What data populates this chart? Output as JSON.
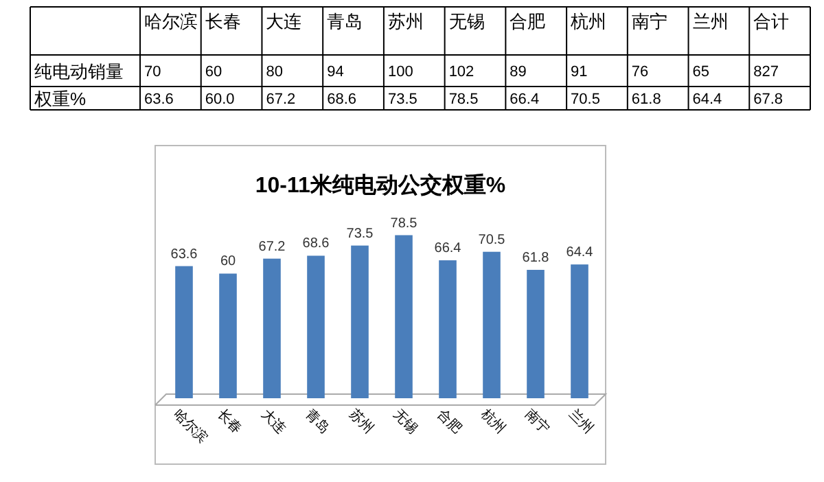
{
  "chart_data": [
    {
      "type": "other",
      "data_labels": true,
      "categories": [
        "哈尔滨",
        "长春",
        "大连",
        "青岛",
        "苏州",
        "无锡",
        "合肥",
        "杭州",
        "南宁",
        "兰州",
        "合计"
      ],
      "series": [
        {
          "name": "纯电动销量",
          "values": [
            70,
            60,
            80,
            94,
            100,
            102,
            89,
            91,
            76,
            65,
            827
          ]
        },
        {
          "name": "权重%",
          "values": [
            63.6,
            60.0,
            67.2,
            68.6,
            73.5,
            78.5,
            66.4,
            70.5,
            61.8,
            64.4,
            67.8
          ],
          "value_labels": [
            "63.6",
            "60.0",
            "67.2",
            "68.6",
            "73.5",
            "78.5",
            "66.4",
            "70.5",
            "61.8",
            "64.4",
            "67.8"
          ]
        }
      ]
    },
    {
      "type": "bar",
      "title": "10-11米纯电动公交权重%",
      "categories": [
        "哈尔滨",
        "长春",
        "大连",
        "青岛",
        "苏州",
        "无锡",
        "合肥",
        "杭州",
        "南宁",
        "兰州"
      ],
      "values": [
        63.6,
        60,
        67.2,
        68.6,
        73.5,
        78.5,
        66.4,
        70.5,
        61.8,
        64.4
      ],
      "color": "#4a7ebb",
      "data_labels": true
    }
  ]
}
